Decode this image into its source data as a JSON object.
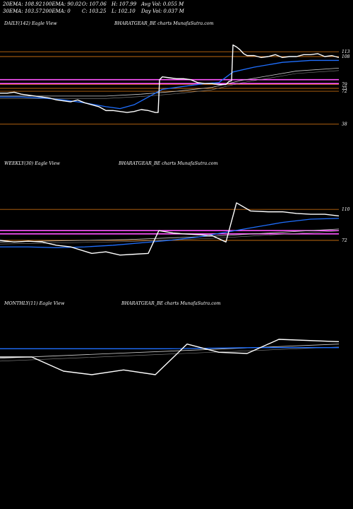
{
  "header": {
    "row1": [
      "20EMA: 108.92",
      "100EMA: 90.02",
      "O: 107.06",
      "H: 107.99",
      "Avg Vol: 0.055 M"
    ],
    "row2": [
      "30EMA: 103.57",
      "200EMA: 0",
      "C: 103.25",
      "L: 102.10",
      "Day Vol: 0.037 M"
    ]
  },
  "colors": {
    "price": "#ffffff",
    "ema_fast": "#1f6fff",
    "ema_slow": "#cccccc",
    "level": "#c06a10",
    "band": "#ff55ff"
  },
  "chart_data": [
    {
      "type": "line",
      "label": "DAILY(142) Eagle  View",
      "watermark": "BHARATGEAR_BE charts MunafaSutra.com",
      "y_tick_labels": [
        "113",
        "108",
        "79",
        "75",
        "72",
        "38"
      ],
      "level_lines": [
        113,
        108,
        79,
        75,
        72,
        38
      ],
      "band_lines": [
        84,
        80
      ],
      "ylim": [
        20,
        130
      ],
      "series": [
        {
          "role": "price",
          "x": [
            0,
            10,
            20,
            30,
            40,
            50,
            60,
            70,
            80,
            90,
            100,
            110,
            120,
            130,
            140,
            150,
            160,
            170,
            180,
            190,
            200,
            210,
            220,
            224,
            226,
            230,
            240,
            250,
            260,
            270,
            280,
            290,
            300,
            310,
            320,
            324,
            328,
            330,
            335,
            340,
            345,
            350,
            360,
            370,
            380,
            390,
            400,
            410,
            420,
            430,
            440,
            450,
            460,
            470,
            480
          ],
          "values": [
            70,
            70,
            71,
            69,
            68,
            67,
            66,
            65,
            63,
            62,
            61,
            63,
            60,
            58,
            56,
            52,
            52,
            51,
            50,
            51,
            53,
            52,
            50,
            50,
            84,
            87,
            86,
            85,
            85,
            84,
            81,
            80,
            80,
            79,
            79,
            82,
            83,
            120,
            118,
            115,
            111,
            109,
            109,
            107,
            108,
            110,
            107,
            108,
            108,
            110,
            110,
            111,
            108,
            109,
            107
          ]
        },
        {
          "role": "ema_fast",
          "x": [
            0,
            30,
            60,
            90,
            120,
            150,
            170,
            190,
            210,
            230,
            260,
            290,
            310,
            330,
            360,
            400,
            440,
            480
          ],
          "values": [
            66,
            66,
            65,
            63,
            60,
            56,
            54,
            58,
            66,
            74,
            77,
            80,
            81,
            92,
            97,
            102,
            104,
            104
          ]
        },
        {
          "role": "ema_slow",
          "x": [
            0,
            50,
            100,
            150,
            200,
            250,
            300,
            340,
            380,
            420,
            480
          ],
          "values": [
            67,
            67,
            67,
            67,
            69,
            72,
            76,
            83,
            88,
            93,
            96
          ]
        }
      ]
    },
    {
      "type": "line",
      "label": "WEEKLY(30) Eagle  View",
      "watermark": "BHARATGEAR_BE charts MunafaSutra.com",
      "y_tick_labels": [
        "110",
        "72"
      ],
      "level_lines": [
        110,
        72
      ],
      "band_lines": [
        84,
        80
      ],
      "ylim": [
        20,
        150
      ],
      "series": [
        {
          "role": "price",
          "x": [
            0,
            20,
            40,
            60,
            80,
            100,
            130,
            150,
            170,
            190,
            210,
            225,
            245,
            260,
            280,
            300,
            320,
            335,
            355,
            380,
            400,
            420,
            440,
            460,
            480
          ],
          "values": [
            72,
            70,
            71,
            70,
            66,
            64,
            56,
            58,
            54,
            55,
            56,
            84,
            81,
            80,
            79,
            78,
            70,
            118,
            108,
            107,
            107,
            105,
            104,
            104,
            102
          ]
        },
        {
          "role": "ema_fast",
          "x": [
            0,
            40,
            80,
            120,
            160,
            200,
            240,
            280,
            320,
            360,
            400,
            440,
            480
          ],
          "values": [
            64,
            64,
            63,
            64,
            66,
            69,
            72,
            76,
            82,
            88,
            94,
            98,
            99
          ]
        },
        {
          "role": "ema_slow",
          "x": [
            0,
            60,
            120,
            180,
            240,
            300,
            360,
            420,
            480
          ],
          "values": [
            70,
            71,
            72,
            73,
            75,
            77,
            80,
            83,
            86
          ]
        }
      ]
    },
    {
      "type": "line",
      "label": "MONTHLY(11) Eagle  View",
      "watermark": "BHARATGEAR_BE charts MunafaSutra.com",
      "y_tick_labels": [],
      "level_lines": [],
      "band_lines": [],
      "ylim": [
        20,
        110
      ],
      "series": [
        {
          "role": "price",
          "x": [
            0,
            45,
            90,
            130,
            175,
            220,
            265,
            310,
            350,
            395,
            480
          ],
          "values": [
            77,
            77,
            65,
            62,
            66,
            62,
            88,
            81,
            80,
            92,
            90
          ]
        },
        {
          "role": "ema_fast",
          "x": [
            0,
            120,
            240,
            360,
            480
          ],
          "values": [
            84,
            84,
            84,
            85,
            85
          ]
        },
        {
          "role": "ema_slow",
          "x": [
            0,
            120,
            240,
            360,
            480
          ],
          "values": [
            76,
            79,
            82,
            85,
            88
          ]
        }
      ]
    }
  ]
}
